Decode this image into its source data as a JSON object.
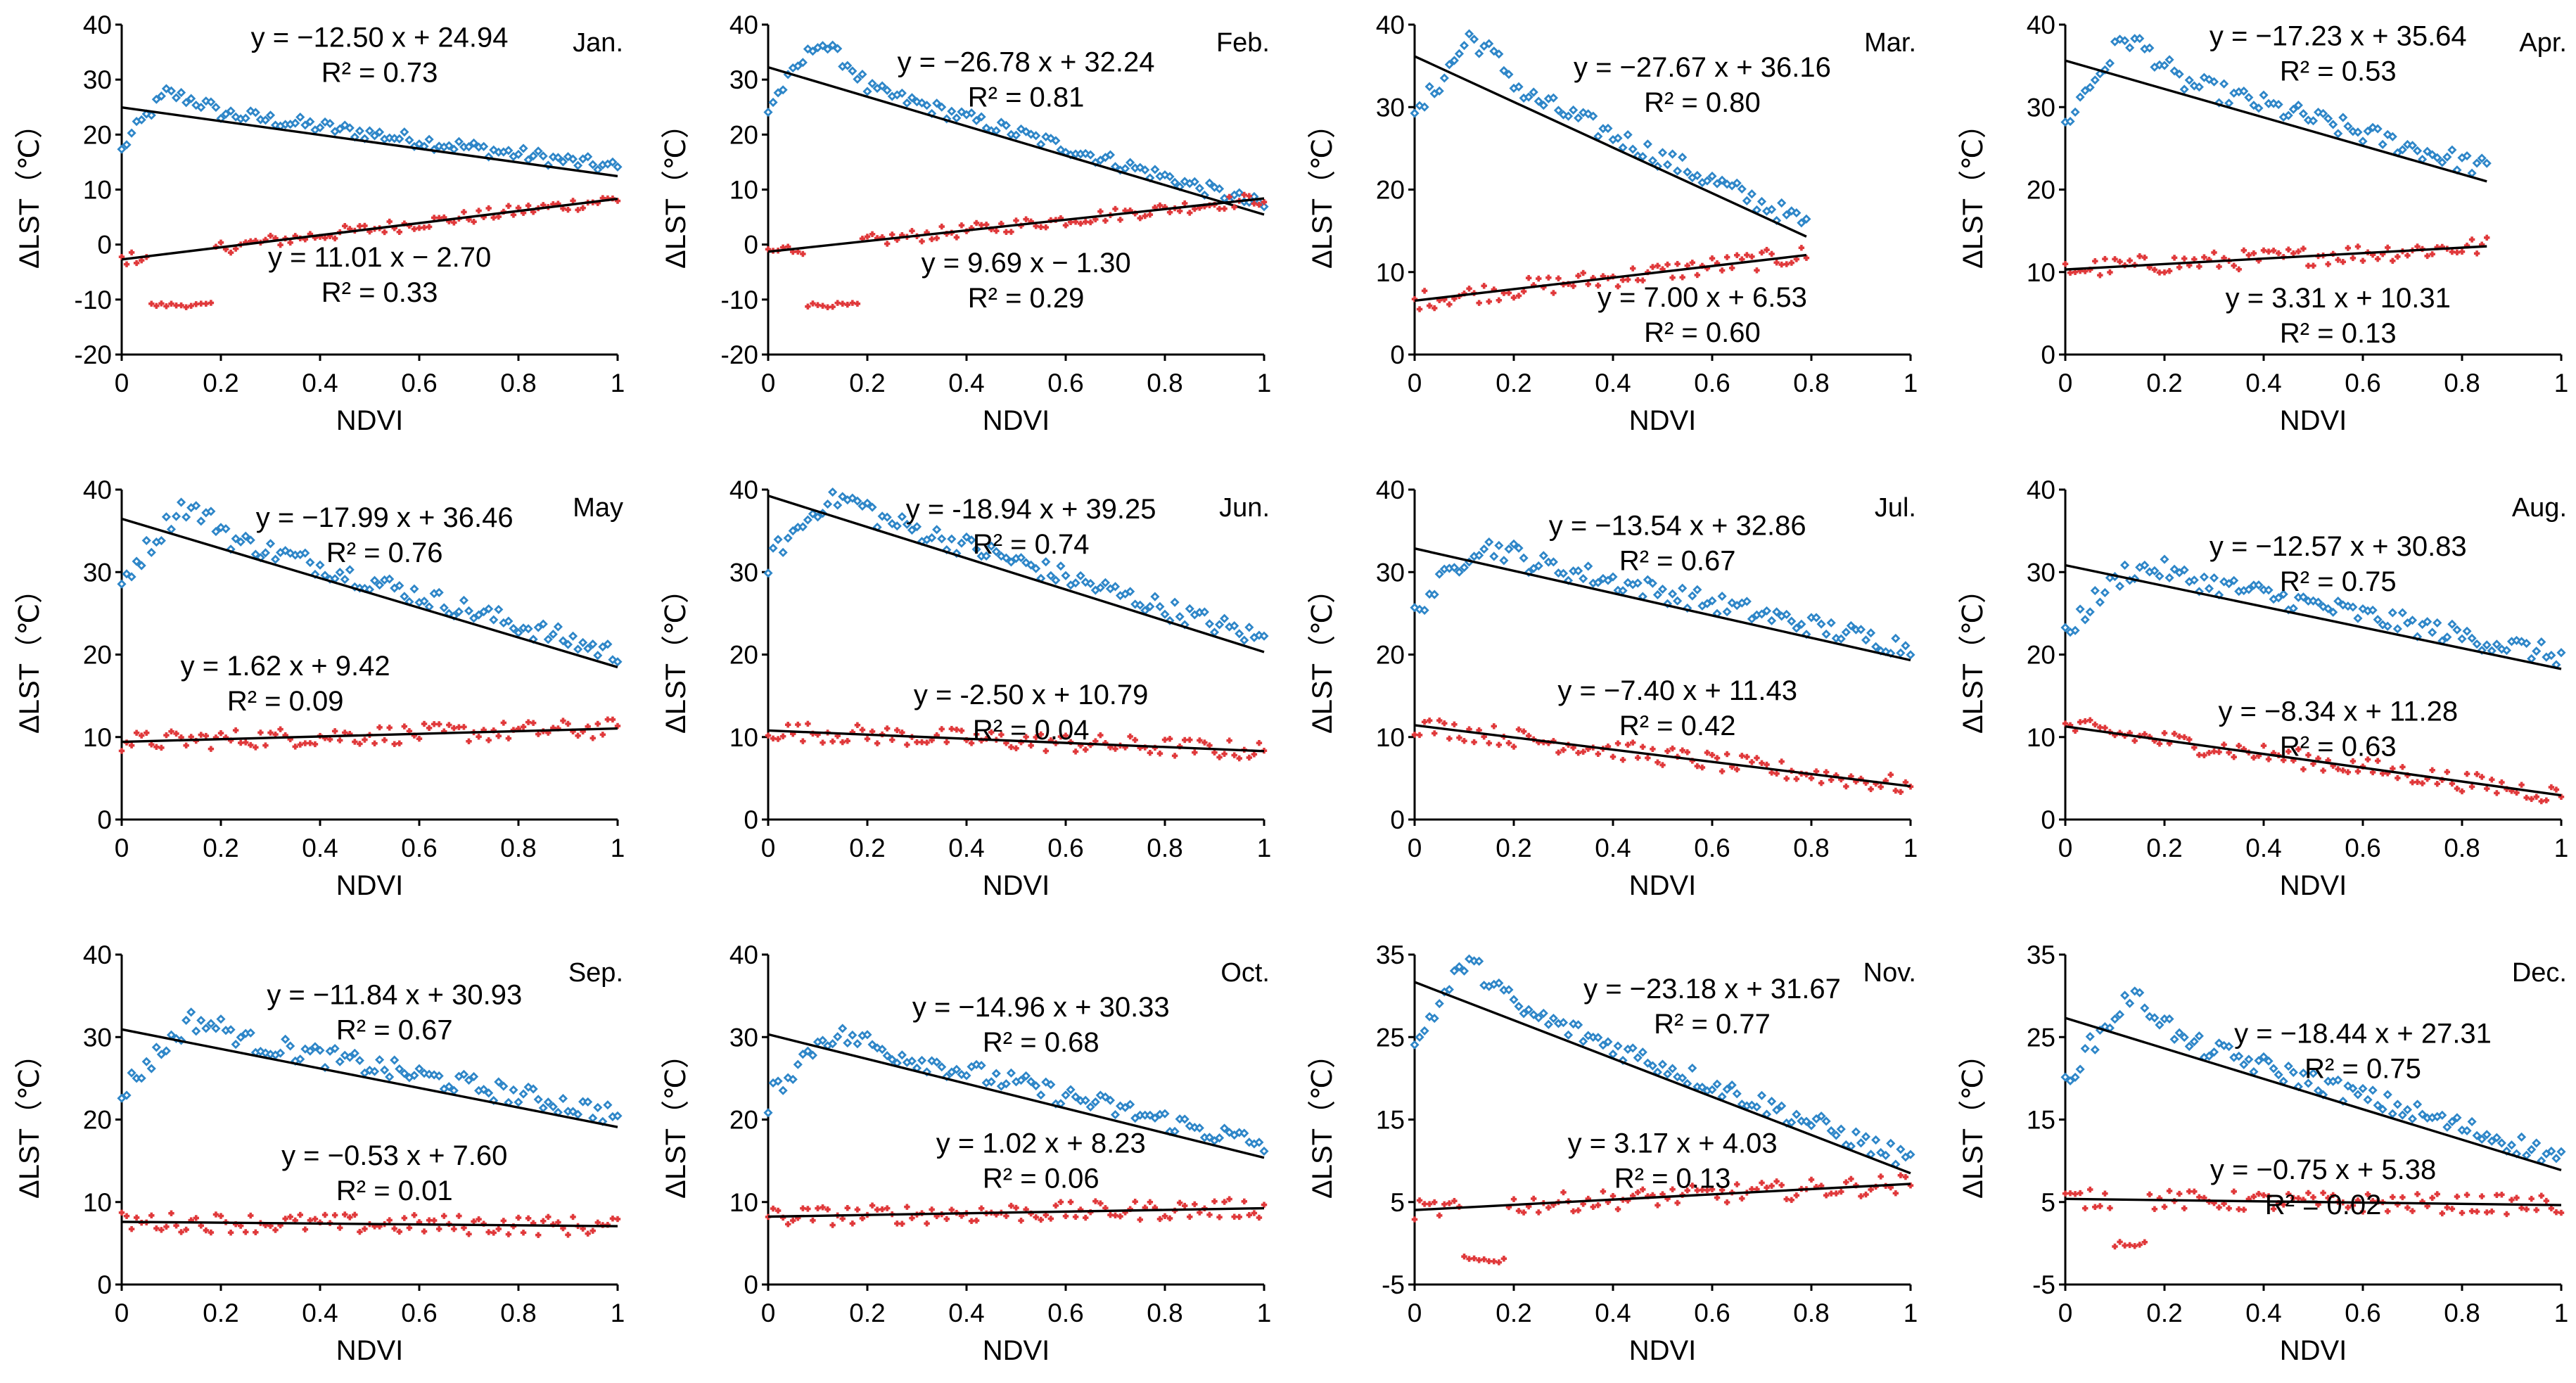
{
  "figure": {
    "x_axis_title": "NDVI",
    "y_axis_title": "ΔLST（℃）",
    "colors": {
      "series_high": "#2E86C8",
      "series_low": "#E0393B",
      "fit_line": "#000000",
      "axis": "#000000"
    }
  },
  "chart_data": [
    {
      "type": "scatter",
      "title": "Jan.",
      "xlabel": "NDVI",
      "ylabel": "ΔLST（℃）",
      "xlim": [
        0,
        1
      ],
      "xticks": [
        "0",
        "0.2",
        "0.4",
        "0.6",
        "0.8",
        "1"
      ],
      "ylim": [
        -20,
        40
      ],
      "yticks": [
        "-20",
        "-10",
        "0",
        "10",
        "20",
        "30",
        "40"
      ],
      "series": [
        {
          "name": "upper",
          "marker": "diamond",
          "color": "#2E86C8",
          "x_range": [
            0.0,
            1.0
          ],
          "fit": {
            "slope": -12.5,
            "intercept": 24.94
          },
          "equation": "y = −12.50 x + 24.94",
          "r2": "R² = 0.73",
          "hump": {
            "x": 0.09,
            "peak": 27.5
          }
        },
        {
          "name": "lower",
          "marker": "cross",
          "color": "#E0393B",
          "x_range": [
            0.0,
            1.0
          ],
          "fit": {
            "slope": 11.01,
            "intercept": -2.7
          },
          "equation": "y = 11.01 x − 2.70",
          "r2": "R² = 0.33",
          "dip": {
            "x": 0.06,
            "x2": 0.18,
            "value": -11
          }
        }
      ]
    },
    {
      "type": "scatter",
      "title": "Feb.",
      "xlabel": "NDVI",
      "ylabel": "ΔLST（℃）",
      "xlim": [
        0,
        1
      ],
      "xticks": [
        "0",
        "0.2",
        "0.4",
        "0.6",
        "0.8",
        "1"
      ],
      "ylim": [
        -20,
        40
      ],
      "yticks": [
        "-20",
        "-10",
        "0",
        "10",
        "20",
        "30",
        "40"
      ],
      "series": [
        {
          "name": "upper",
          "marker": "diamond",
          "color": "#2E86C8",
          "x_range": [
            0.0,
            1.0
          ],
          "fit": {
            "slope": -26.78,
            "intercept": 32.24
          },
          "equation": "y = −26.78 x + 32.24",
          "r2": "R² = 0.81",
          "hump": {
            "x": 0.1,
            "peak": 37
          }
        },
        {
          "name": "lower",
          "marker": "cross",
          "color": "#E0393B",
          "x_range": [
            0.0,
            1.0
          ],
          "fit": {
            "slope": 9.69,
            "intercept": -1.3
          },
          "equation": "y = 9.69 x − 1.30",
          "r2": "R² = 0.29",
          "dip": {
            "x": 0.08,
            "x2": 0.18,
            "value": -11
          }
        }
      ]
    },
    {
      "type": "scatter",
      "title": "Mar.",
      "xlabel": "NDVI",
      "ylabel": "ΔLST（℃）",
      "xlim": [
        0,
        1
      ],
      "xticks": [
        "0",
        "0.2",
        "0.4",
        "0.6",
        "0.8",
        "1"
      ],
      "ylim": [
        0,
        40
      ],
      "yticks": [
        "0",
        "10",
        "20",
        "30",
        "40"
      ],
      "series": [
        {
          "name": "upper",
          "marker": "diamond",
          "color": "#2E86C8",
          "x_range": [
            0.0,
            0.79
          ],
          "fit": {
            "slope": -27.67,
            "intercept": 36.16
          },
          "equation": "y = −27.67 x + 36.16",
          "r2": "R² = 0.80",
          "hump": {
            "x": 0.11,
            "peak": 38.5
          }
        },
        {
          "name": "lower",
          "marker": "cross",
          "color": "#E0393B",
          "x_range": [
            0.0,
            0.79
          ],
          "fit": {
            "slope": 7.0,
            "intercept": 6.53
          },
          "equation": "y = 7.00 x + 6.53",
          "r2": "R² = 0.60"
        }
      ]
    },
    {
      "type": "scatter",
      "title": "Apr.",
      "xlabel": "NDVI",
      "ylabel": "ΔLST（℃）",
      "xlim": [
        0,
        1
      ],
      "xticks": [
        "0",
        "0.2",
        "0.4",
        "0.6",
        "0.8",
        "1"
      ],
      "ylim": [
        0,
        40
      ],
      "yticks": [
        "0",
        "10",
        "20",
        "30",
        "40"
      ],
      "series": [
        {
          "name": "upper",
          "marker": "diamond",
          "color": "#2E86C8",
          "x_range": [
            0.0,
            0.85
          ],
          "fit": {
            "slope": -17.23,
            "intercept": 35.64
          },
          "equation": "y = −17.23 x + 35.64",
          "r2": "R² = 0.53",
          "hump": {
            "x": 0.12,
            "peak": 38.5
          }
        },
        {
          "name": "lower",
          "marker": "cross",
          "color": "#E0393B",
          "x_range": [
            0.0,
            0.85
          ],
          "fit": {
            "slope": 3.31,
            "intercept": 10.31
          },
          "equation": "y = 3.31 x + 10.31",
          "r2": "R² = 0.13"
        }
      ]
    },
    {
      "type": "scatter",
      "title": "May",
      "xlabel": "NDVI",
      "ylabel": "ΔLST（℃）",
      "xlim": [
        0,
        1
      ],
      "xticks": [
        "0",
        "0.2",
        "0.4",
        "0.6",
        "0.8",
        "1"
      ],
      "ylim": [
        0,
        40
      ],
      "yticks": [
        "0",
        "10",
        "20",
        "30",
        "40"
      ],
      "series": [
        {
          "name": "upper",
          "marker": "diamond",
          "color": "#2E86C8",
          "x_range": [
            0.0,
            1.0
          ],
          "fit": {
            "slope": -17.99,
            "intercept": 36.46
          },
          "equation": "y = −17.99 x + 36.46",
          "r2": "R² = 0.76",
          "hump": {
            "x": 0.12,
            "peak": 38
          }
        },
        {
          "name": "lower",
          "marker": "cross",
          "color": "#E0393B",
          "x_range": [
            0.0,
            1.0
          ],
          "fit": {
            "slope": 1.62,
            "intercept": 9.42
          },
          "equation": "y = 1.62 x + 9.42",
          "r2": "R² = 0.09"
        }
      ]
    },
    {
      "type": "scatter",
      "title": "Jun.",
      "xlabel": "NDVI",
      "ylabel": "ΔLST（℃）",
      "xlim": [
        0,
        1
      ],
      "xticks": [
        "0",
        "0.2",
        "0.4",
        "0.6",
        "0.8",
        "1"
      ],
      "ylim": [
        0,
        40
      ],
      "yticks": [
        "0",
        "10",
        "20",
        "30",
        "40"
      ],
      "series": [
        {
          "name": "upper",
          "marker": "diamond",
          "color": "#2E86C8",
          "x_range": [
            0.0,
            1.0
          ],
          "fit": {
            "slope": -18.94,
            "intercept": 39.25
          },
          "equation": "y = -18.94 x + 39.25",
          "r2": "R² = 0.74",
          "hump": {
            "x": 0.12,
            "peak": 39
          }
        },
        {
          "name": "lower",
          "marker": "cross",
          "color": "#E0393B",
          "x_range": [
            0.0,
            1.0
          ],
          "fit": {
            "slope": -2.5,
            "intercept": 10.79
          },
          "equation": "y = -2.50 x + 10.79",
          "r2": "R² = 0.04"
        }
      ]
    },
    {
      "type": "scatter",
      "title": "Jul.",
      "xlabel": "NDVI",
      "ylabel": "ΔLST（℃）",
      "xlim": [
        0,
        1
      ],
      "xticks": [
        "0",
        "0.2",
        "0.4",
        "0.6",
        "0.8",
        "1"
      ],
      "ylim": [
        0,
        40
      ],
      "yticks": [
        "0",
        "10",
        "20",
        "30",
        "40"
      ],
      "series": [
        {
          "name": "upper",
          "marker": "diamond",
          "color": "#2E86C8",
          "x_range": [
            0.0,
            1.0
          ],
          "fit": {
            "slope": -13.54,
            "intercept": 32.86
          },
          "equation": "y = −13.54 x + 32.86",
          "r2": "R² = 0.67",
          "hump": {
            "x": 0.12,
            "peak": 33
          }
        },
        {
          "name": "lower",
          "marker": "cross",
          "color": "#E0393B",
          "x_range": [
            0.0,
            1.0
          ],
          "fit": {
            "slope": -7.4,
            "intercept": 11.43
          },
          "equation": "y = −7.40 x + 11.43",
          "r2": "R² = 0.42"
        }
      ]
    },
    {
      "type": "scatter",
      "title": "Aug.",
      "xlabel": "NDVI",
      "ylabel": "ΔLST（℃）",
      "xlim": [
        0,
        1
      ],
      "xticks": [
        "0",
        "0.2",
        "0.4",
        "0.6",
        "0.8",
        "1"
      ],
      "ylim": [
        0,
        40
      ],
      "yticks": [
        "0",
        "10",
        "20",
        "30",
        "40"
      ],
      "series": [
        {
          "name": "upper",
          "marker": "diamond",
          "color": "#2E86C8",
          "x_range": [
            0.0,
            1.0
          ],
          "fit": {
            "slope": -12.57,
            "intercept": 30.83
          },
          "equation": "y = −12.57 x + 30.83",
          "r2": "R² = 0.75",
          "hump": {
            "x": 0.12,
            "peak": 30
          }
        },
        {
          "name": "lower",
          "marker": "cross",
          "color": "#E0393B",
          "x_range": [
            0.0,
            1.0
          ],
          "fit": {
            "slope": -8.34,
            "intercept": 11.28
          },
          "equation": "y = −8.34 x + 11.28",
          "r2": "R² = 0.63"
        }
      ]
    },
    {
      "type": "scatter",
      "title": "Sep.",
      "xlabel": "NDVI",
      "ylabel": "ΔLST（℃）",
      "xlim": [
        0,
        1
      ],
      "xticks": [
        "0",
        "0.2",
        "0.4",
        "0.6",
        "0.8",
        "1"
      ],
      "ylim": [
        0,
        40
      ],
      "yticks": [
        "0",
        "10",
        "20",
        "30",
        "40"
      ],
      "series": [
        {
          "name": "upper",
          "marker": "diamond",
          "color": "#2E86C8",
          "x_range": [
            0.0,
            1.0
          ],
          "fit": {
            "slope": -11.84,
            "intercept": 30.93
          },
          "equation": "y = −11.84 x + 30.93",
          "r2": "R² = 0.67",
          "hump": {
            "x": 0.14,
            "peak": 32
          }
        },
        {
          "name": "lower",
          "marker": "cross",
          "color": "#E0393B",
          "x_range": [
            0.0,
            1.0
          ],
          "fit": {
            "slope": -0.53,
            "intercept": 7.6
          },
          "equation": "y = −0.53 x + 7.60",
          "r2": "R² = 0.01"
        }
      ]
    },
    {
      "type": "scatter",
      "title": "Oct.",
      "xlabel": "NDVI",
      "ylabel": "ΔLST（℃）",
      "xlim": [
        0,
        1
      ],
      "xticks": [
        "0",
        "0.2",
        "0.4",
        "0.6",
        "0.8",
        "1"
      ],
      "ylim": [
        0,
        40
      ],
      "yticks": [
        "0",
        "10",
        "20",
        "30",
        "40"
      ],
      "series": [
        {
          "name": "upper",
          "marker": "diamond",
          "color": "#2E86C8",
          "x_range": [
            0.0,
            1.0
          ],
          "fit": {
            "slope": -14.96,
            "intercept": 30.33
          },
          "equation": "y = −14.96 x + 30.33",
          "r2": "R² = 0.68",
          "hump": {
            "x": 0.11,
            "peak": 30
          }
        },
        {
          "name": "lower",
          "marker": "cross",
          "color": "#E0393B",
          "x_range": [
            0.0,
            1.0
          ],
          "fit": {
            "slope": 1.02,
            "intercept": 8.23
          },
          "equation": "y = 1.02 x + 8.23",
          "r2": "R² = 0.06"
        }
      ]
    },
    {
      "type": "scatter",
      "title": "Nov.",
      "xlabel": "NDVI",
      "ylabel": "ΔLST（℃）",
      "xlim": [
        0,
        1
      ],
      "xticks": [
        "0",
        "0.2",
        "0.4",
        "0.6",
        "0.8",
        "1"
      ],
      "ylim": [
        -5,
        35
      ],
      "yticks": [
        "-5",
        "5",
        "15",
        "25",
        "35"
      ],
      "series": [
        {
          "name": "upper",
          "marker": "diamond",
          "color": "#2E86C8",
          "x_range": [
            0.0,
            1.0
          ],
          "fit": {
            "slope": -23.18,
            "intercept": 31.67
          },
          "equation": "y = −23.18 x + 31.67",
          "r2": "R² = 0.77",
          "hump": {
            "x": 0.1,
            "peak": 34
          }
        },
        {
          "name": "lower",
          "marker": "cross",
          "color": "#E0393B",
          "x_range": [
            0.0,
            1.0
          ],
          "fit": {
            "slope": 3.17,
            "intercept": 4.03
          },
          "equation": "y = 3.17 x + 4.03",
          "r2": "R² = 0.13",
          "dip": {
            "x": 0.1,
            "x2": 0.18,
            "value": -2
          }
        }
      ]
    },
    {
      "type": "scatter",
      "title": "Dec.",
      "xlabel": "NDVI",
      "ylabel": "ΔLST（℃）",
      "xlim": [
        0,
        1
      ],
      "xticks": [
        "0",
        "0.2",
        "0.4",
        "0.6",
        "0.8",
        "1"
      ],
      "ylim": [
        -5,
        35
      ],
      "yticks": [
        "-5",
        "5",
        "15",
        "25",
        "35"
      ],
      "series": [
        {
          "name": "upper",
          "marker": "diamond",
          "color": "#2E86C8",
          "x_range": [
            0.0,
            1.0
          ],
          "fit": {
            "slope": -18.44,
            "intercept": 27.31
          },
          "equation": "y = −18.44 x + 27.31",
          "r2": "R² = 0.75",
          "hump": {
            "x": 0.13,
            "peak": 30
          }
        },
        {
          "name": "lower",
          "marker": "cross",
          "color": "#E0393B",
          "x_range": [
            0.0,
            1.0
          ],
          "fit": {
            "slope": -0.75,
            "intercept": 5.38
          },
          "equation": "y = −0.75 x + 5.38",
          "r2": "R² = 0.02",
          "dip": {
            "x": 0.1,
            "x2": 0.16,
            "value": 0
          }
        }
      ]
    }
  ]
}
